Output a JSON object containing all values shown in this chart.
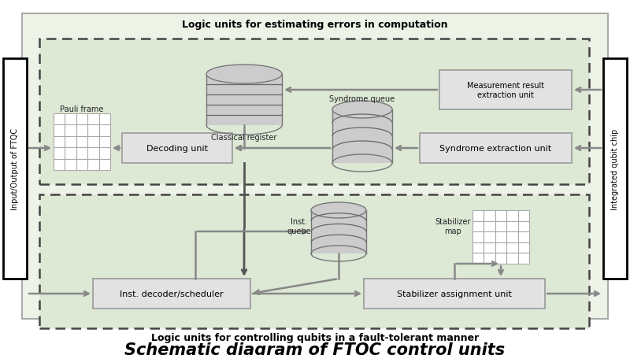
{
  "bg_color": "#eef3e8",
  "inner_box_fill": "#dde8d5",
  "unit_box_fill": "#e2e2e2",
  "unit_box_edge": "#999999",
  "arrow_color": "#888888",
  "title": "Schematic diagram of FTQC control units",
  "top_label": "Logic units for estimating errors in computation",
  "bottom_label": "Logic units for controlling qubits in a fault-tolerant manner",
  "left_label": "Input/Output of FTQC",
  "right_label": "Integrated qubit chip",
  "cyl_fc": "#cccccc",
  "cyl_ec": "#777777",
  "grid_fc": "#ffffff",
  "grid_ec": "#aaaaaa"
}
